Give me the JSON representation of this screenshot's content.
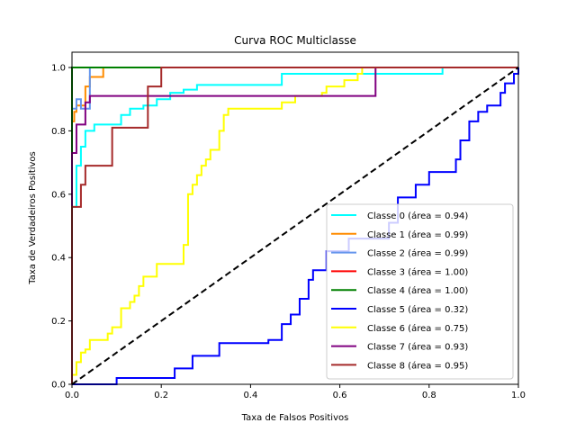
{
  "chart_data": {
    "type": "line",
    "title": "Curva ROC Multiclasse",
    "xlabel": "Taxa de Falsos Positivos",
    "ylabel": "Taxa de Verdadeiros Positivos",
    "xlim": [
      0.0,
      1.0
    ],
    "ylim": [
      0.0,
      1.0
    ],
    "xticks": [
      "0.0",
      "0.2",
      "0.4",
      "0.6",
      "0.8",
      "1.0"
    ],
    "yticks": [
      "0.0",
      "0.2",
      "0.4",
      "0.6",
      "0.8",
      "1.0"
    ],
    "grid": false,
    "legend_position": "lower-right",
    "diagonal": {
      "color": "#000000",
      "style": "dashed",
      "points": [
        [
          0,
          0
        ],
        [
          1,
          1
        ]
      ]
    },
    "series": [
      {
        "name": "Classe 0 (área = 0.94)",
        "color": "#00ffff",
        "points": [
          [
            0,
            0
          ],
          [
            0,
            0.56
          ],
          [
            0.01,
            0.56
          ],
          [
            0.01,
            0.69
          ],
          [
            0.02,
            0.69
          ],
          [
            0.02,
            0.75
          ],
          [
            0.03,
            0.75
          ],
          [
            0.03,
            0.8
          ],
          [
            0.05,
            0.8
          ],
          [
            0.05,
            0.82
          ],
          [
            0.11,
            0.82
          ],
          [
            0.11,
            0.85
          ],
          [
            0.13,
            0.85
          ],
          [
            0.13,
            0.87
          ],
          [
            0.16,
            0.87
          ],
          [
            0.16,
            0.88
          ],
          [
            0.19,
            0.88
          ],
          [
            0.19,
            0.9
          ],
          [
            0.22,
            0.9
          ],
          [
            0.22,
            0.92
          ],
          [
            0.25,
            0.92
          ],
          [
            0.25,
            0.93
          ],
          [
            0.28,
            0.93
          ],
          [
            0.28,
            0.945
          ],
          [
            0.47,
            0.945
          ],
          [
            0.47,
            0.98
          ],
          [
            0.83,
            0.98
          ],
          [
            0.83,
            1.0
          ],
          [
            1.0,
            1.0
          ]
        ]
      },
      {
        "name": "Classe 1 (área = 0.99)",
        "color": "#ff8c00",
        "points": [
          [
            0,
            0
          ],
          [
            0,
            0.83
          ],
          [
            0.005,
            0.83
          ],
          [
            0.005,
            0.86
          ],
          [
            0.01,
            0.86
          ],
          [
            0.01,
            0.88
          ],
          [
            0.03,
            0.88
          ],
          [
            0.03,
            0.94
          ],
          [
            0.04,
            0.94
          ],
          [
            0.04,
            0.97
          ],
          [
            0.07,
            0.97
          ],
          [
            0.07,
            1.0
          ],
          [
            1.0,
            1.0
          ]
        ]
      },
      {
        "name": "Classe 2 (área = 0.99)",
        "color": "#6495ed",
        "points": [
          [
            0,
            0
          ],
          [
            0,
            0.87
          ],
          [
            0.01,
            0.87
          ],
          [
            0.01,
            0.9
          ],
          [
            0.02,
            0.9
          ],
          [
            0.02,
            0.87
          ],
          [
            0.04,
            0.87
          ],
          [
            0.04,
            1.0
          ],
          [
            1.0,
            1.0
          ]
        ]
      },
      {
        "name": "Classe 3 (área = 1.00)",
        "color": "#ff0000",
        "points": [
          [
            0,
            0
          ],
          [
            0,
            1.0
          ],
          [
            1.0,
            1.0
          ]
        ]
      },
      {
        "name": "Classe 4 (área = 1.00)",
        "color": "#008000",
        "points": [
          [
            0,
            0
          ],
          [
            0,
            1.0
          ],
          [
            1.0,
            1.0
          ]
        ]
      },
      {
        "name": "Classe 5 (área = 0.32)",
        "color": "#0000ff",
        "points": [
          [
            0,
            0
          ],
          [
            0.1,
            0
          ],
          [
            0.1,
            0.02
          ],
          [
            0.23,
            0.02
          ],
          [
            0.23,
            0.05
          ],
          [
            0.27,
            0.05
          ],
          [
            0.27,
            0.09
          ],
          [
            0.33,
            0.09
          ],
          [
            0.33,
            0.13
          ],
          [
            0.44,
            0.13
          ],
          [
            0.44,
            0.14
          ],
          [
            0.47,
            0.14
          ],
          [
            0.47,
            0.19
          ],
          [
            0.49,
            0.19
          ],
          [
            0.49,
            0.22
          ],
          [
            0.51,
            0.22
          ],
          [
            0.51,
            0.27
          ],
          [
            0.53,
            0.27
          ],
          [
            0.53,
            0.33
          ],
          [
            0.54,
            0.33
          ],
          [
            0.54,
            0.36
          ],
          [
            0.57,
            0.36
          ],
          [
            0.57,
            0.42
          ],
          [
            0.62,
            0.42
          ],
          [
            0.62,
            0.46
          ],
          [
            0.71,
            0.46
          ],
          [
            0.71,
            0.51
          ],
          [
            0.73,
            0.51
          ],
          [
            0.73,
            0.59
          ],
          [
            0.77,
            0.59
          ],
          [
            0.77,
            0.63
          ],
          [
            0.8,
            0.63
          ],
          [
            0.8,
            0.67
          ],
          [
            0.86,
            0.67
          ],
          [
            0.86,
            0.71
          ],
          [
            0.87,
            0.71
          ],
          [
            0.87,
            0.77
          ],
          [
            0.89,
            0.77
          ],
          [
            0.89,
            0.83
          ],
          [
            0.91,
            0.83
          ],
          [
            0.91,
            0.86
          ],
          [
            0.93,
            0.86
          ],
          [
            0.93,
            0.88
          ],
          [
            0.96,
            0.88
          ],
          [
            0.96,
            0.92
          ],
          [
            0.97,
            0.92
          ],
          [
            0.97,
            0.95
          ],
          [
            0.99,
            0.95
          ],
          [
            0.99,
            0.98
          ],
          [
            1.0,
            0.98
          ],
          [
            1.0,
            1.0
          ]
        ]
      },
      {
        "name": "Classe 6 (área = 0.75)",
        "color": "#ffff00",
        "points": [
          [
            0,
            0
          ],
          [
            0,
            0.03
          ],
          [
            0.01,
            0.03
          ],
          [
            0.01,
            0.07
          ],
          [
            0.02,
            0.07
          ],
          [
            0.02,
            0.1
          ],
          [
            0.03,
            0.1
          ],
          [
            0.03,
            0.11
          ],
          [
            0.04,
            0.11
          ],
          [
            0.04,
            0.14
          ],
          [
            0.08,
            0.14
          ],
          [
            0.08,
            0.16
          ],
          [
            0.09,
            0.16
          ],
          [
            0.09,
            0.18
          ],
          [
            0.11,
            0.18
          ],
          [
            0.11,
            0.24
          ],
          [
            0.13,
            0.24
          ],
          [
            0.13,
            0.26
          ],
          [
            0.14,
            0.26
          ],
          [
            0.14,
            0.28
          ],
          [
            0.15,
            0.28
          ],
          [
            0.15,
            0.31
          ],
          [
            0.16,
            0.31
          ],
          [
            0.16,
            0.34
          ],
          [
            0.19,
            0.34
          ],
          [
            0.19,
            0.38
          ],
          [
            0.25,
            0.38
          ],
          [
            0.25,
            0.44
          ],
          [
            0.26,
            0.44
          ],
          [
            0.26,
            0.6
          ],
          [
            0.27,
            0.6
          ],
          [
            0.27,
            0.63
          ],
          [
            0.28,
            0.63
          ],
          [
            0.28,
            0.66
          ],
          [
            0.29,
            0.66
          ],
          [
            0.29,
            0.69
          ],
          [
            0.3,
            0.69
          ],
          [
            0.3,
            0.71
          ],
          [
            0.31,
            0.71
          ],
          [
            0.31,
            0.74
          ],
          [
            0.33,
            0.74
          ],
          [
            0.33,
            0.8
          ],
          [
            0.34,
            0.8
          ],
          [
            0.34,
            0.85
          ],
          [
            0.35,
            0.85
          ],
          [
            0.35,
            0.87
          ],
          [
            0.47,
            0.87
          ],
          [
            0.47,
            0.89
          ],
          [
            0.5,
            0.89
          ],
          [
            0.5,
            0.91
          ],
          [
            0.56,
            0.91
          ],
          [
            0.56,
            0.92
          ],
          [
            0.57,
            0.92
          ],
          [
            0.57,
            0.94
          ],
          [
            0.61,
            0.94
          ],
          [
            0.61,
            0.96
          ],
          [
            0.64,
            0.96
          ],
          [
            0.64,
            0.98
          ],
          [
            0.65,
            0.98
          ],
          [
            0.65,
            1.0
          ],
          [
            1.0,
            1.0
          ]
        ]
      },
      {
        "name": "Classe 7 (área = 0.93)",
        "color": "#800080",
        "points": [
          [
            0,
            0
          ],
          [
            0,
            0.73
          ],
          [
            0.01,
            0.73
          ],
          [
            0.01,
            0.82
          ],
          [
            0.03,
            0.82
          ],
          [
            0.03,
            0.89
          ],
          [
            0.04,
            0.89
          ],
          [
            0.04,
            0.91
          ],
          [
            0.68,
            0.91
          ],
          [
            0.68,
            1.0
          ],
          [
            1.0,
            1.0
          ]
        ]
      },
      {
        "name": "Classe 8 (área = 0.95)",
        "color": "#a52a2a",
        "points": [
          [
            0,
            0
          ],
          [
            0,
            0.56
          ],
          [
            0.02,
            0.56
          ],
          [
            0.02,
            0.63
          ],
          [
            0.03,
            0.63
          ],
          [
            0.03,
            0.69
          ],
          [
            0.09,
            0.69
          ],
          [
            0.09,
            0.81
          ],
          [
            0.17,
            0.81
          ],
          [
            0.17,
            0.94
          ],
          [
            0.2,
            0.94
          ],
          [
            0.2,
            1.0
          ],
          [
            1.0,
            1.0
          ]
        ]
      }
    ]
  }
}
